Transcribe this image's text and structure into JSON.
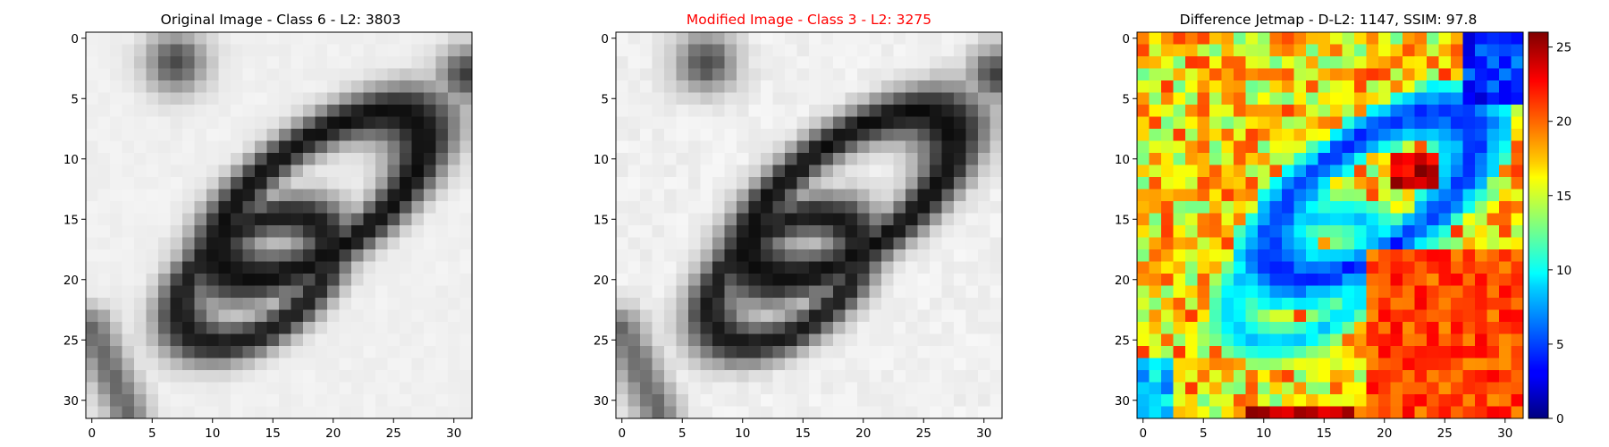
{
  "chart_data": [
    {
      "type": "heatmap",
      "title": "Original Image - Class 6 - L2: 3803",
      "title_color": "#000000",
      "colormap": "gray",
      "xlim": [
        0,
        31
      ],
      "ylim": [
        31,
        0
      ],
      "xticks": [
        "0",
        "5",
        "10",
        "15",
        "20",
        "25",
        "30"
      ],
      "yticks": [
        "0",
        "5",
        "10",
        "15",
        "20",
        "25",
        "30"
      ],
      "content": "digit-6-strokes"
    },
    {
      "type": "heatmap",
      "title": "Modified Image - Class 3 - L2: 3275",
      "title_color": "#ff0000",
      "colormap": "gray",
      "xlim": [
        0,
        31
      ],
      "ylim": [
        31,
        0
      ],
      "xticks": [
        "0",
        "5",
        "10",
        "15",
        "20",
        "25",
        "30"
      ],
      "yticks": [
        "0",
        "5",
        "10",
        "15",
        "20",
        "25",
        "30"
      ],
      "content": "digit-6-strokes-perturbed"
    },
    {
      "type": "heatmap",
      "title": "Difference Jetmap - D-L2: 1147, SSIM: 97.8",
      "title_color": "#000000",
      "colormap": "jet",
      "xlim": [
        0,
        31
      ],
      "ylim": [
        31,
        0
      ],
      "xticks": [
        "0",
        "5",
        "10",
        "15",
        "20",
        "25",
        "30"
      ],
      "yticks": [
        "0",
        "5",
        "10",
        "15",
        "20",
        "25",
        "30"
      ],
      "colorbar": {
        "min": 0,
        "max": 26,
        "ticks": [
          "0",
          "5",
          "10",
          "15",
          "20",
          "25"
        ]
      }
    }
  ]
}
